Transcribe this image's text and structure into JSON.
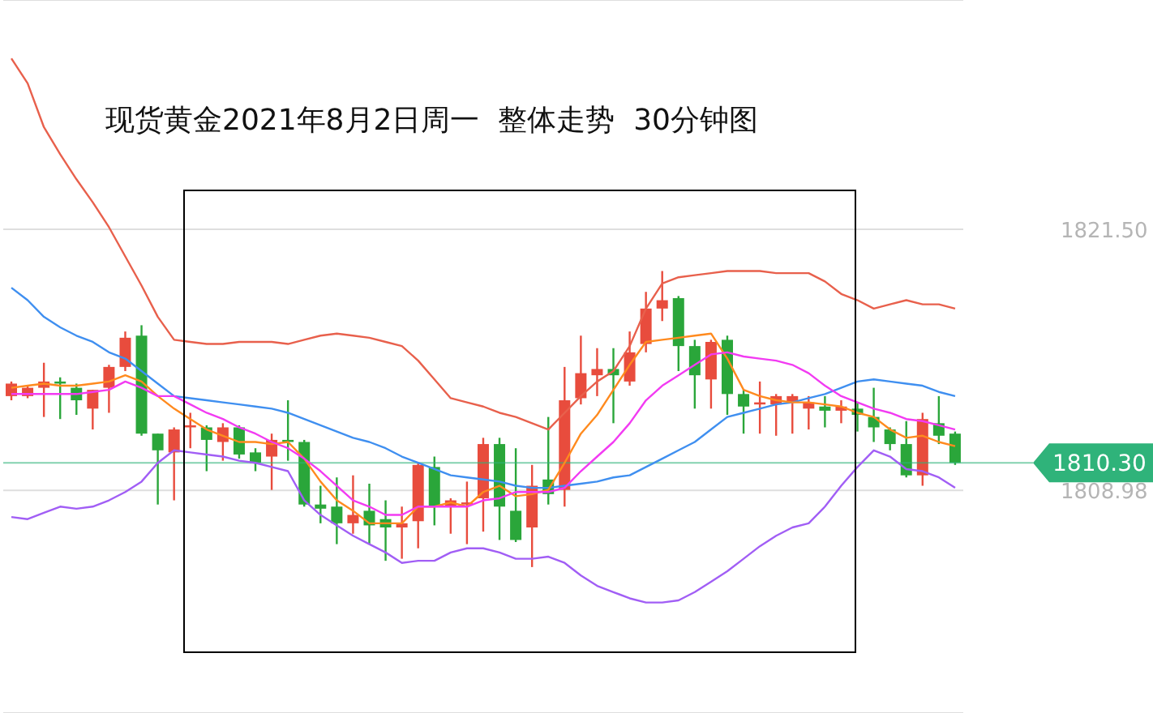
{
  "chart_data": {
    "type": "candlestick",
    "title": "现货黄金2021年8月2日周一  整体走势  30分钟图",
    "categories": [
      null,
      null,
      null,
      null,
      null,
      null,
      null,
      null,
      null,
      null,
      null,
      null,
      null,
      null,
      null,
      null,
      null,
      null,
      null,
      null,
      null,
      null,
      null,
      null,
      null,
      null,
      null,
      null,
      null,
      null,
      null,
      null,
      null,
      null,
      null,
      null,
      null,
      null,
      null,
      null,
      null,
      null,
      null,
      null,
      null,
      null,
      null,
      null,
      null,
      null,
      null,
      null,
      null,
      null,
      null,
      null,
      null,
      null,
      null
    ],
    "ohlc": [
      [
        1813.5,
        1814.2,
        1813.3,
        1814.1
      ],
      [
        1813.5,
        1814.0,
        1813.4,
        1813.9
      ],
      [
        1813.9,
        1815.1,
        1812.5,
        1814.2
      ],
      [
        1814.2,
        1814.4,
        1812.4,
        1814.1
      ],
      [
        1813.9,
        1814.1,
        1812.6,
        1813.3
      ],
      [
        1812.9,
        1813.8,
        1811.9,
        1813.8
      ],
      [
        1813.9,
        1815.0,
        1812.7,
        1814.9
      ],
      [
        1814.9,
        1816.6,
        1814.7,
        1816.3
      ],
      [
        1816.4,
        1816.9,
        1811.6,
        1811.7
      ],
      [
        1811.7,
        1811.7,
        1808.3,
        1810.9
      ],
      [
        1810.8,
        1812.0,
        1808.5,
        1811.9
      ],
      [
        1812.0,
        1812.7,
        1811.0,
        1812.1
      ],
      [
        1812.0,
        1812.1,
        1809.9,
        1811.4
      ],
      [
        1811.3,
        1812.2,
        1810.4,
        1812.0
      ],
      [
        1812.0,
        1812.1,
        1810.5,
        1810.7
      ],
      [
        1810.8,
        1811.0,
        1809.9,
        1810.3
      ],
      [
        1810.6,
        1811.7,
        1809.0,
        1811.4
      ],
      [
        1811.4,
        1813.3,
        1810.4,
        1811.3
      ],
      [
        1811.3,
        1811.4,
        1808.2,
        1808.3
      ],
      [
        1808.3,
        1809.2,
        1807.4,
        1808.1
      ],
      [
        1808.2,
        1809.6,
        1806.4,
        1807.4
      ],
      [
        1807.4,
        1809.7,
        1806.9,
        1807.8
      ],
      [
        1808.0,
        1809.3,
        1806.4,
        1807.3
      ],
      [
        1807.6,
        1808.5,
        1805.6,
        1807.2
      ],
      [
        1807.2,
        1808.2,
        1805.7,
        1807.4
      ],
      [
        1807.5,
        1810.3,
        1806.2,
        1810.2
      ],
      [
        1810.1,
        1810.6,
        1807.3,
        1808.2
      ],
      [
        1808.2,
        1808.6,
        1806.9,
        1808.5
      ],
      [
        1808.3,
        1809.4,
        1806.4,
        1808.4
      ],
      [
        1808.6,
        1811.5,
        1807.0,
        1811.2
      ],
      [
        1811.2,
        1811.5,
        1806.6,
        1808.2
      ],
      [
        1808.0,
        1811.0,
        1806.5,
        1806.6
      ],
      [
        1807.2,
        1810.2,
        1805.3,
        1809.2
      ],
      [
        1809.5,
        1812.5,
        1808.3,
        1808.8
      ],
      [
        1809.0,
        1814.9,
        1808.2,
        1813.3
      ],
      [
        1813.4,
        1816.4,
        1813.1,
        1814.6
      ],
      [
        1814.5,
        1815.8,
        1813.5,
        1814.8
      ],
      [
        1814.8,
        1815.8,
        1812.2,
        1814.5
      ],
      [
        1814.2,
        1816.6,
        1814.0,
        1815.6
      ],
      [
        1816.0,
        1818.5,
        1815.6,
        1817.7
      ],
      [
        1817.7,
        1819.5,
        1817.1,
        1818.1
      ],
      [
        1818.2,
        1818.3,
        1814.7,
        1815.9
      ],
      [
        1815.9,
        1816.2,
        1812.9,
        1814.5
      ],
      [
        1814.3,
        1816.2,
        1812.9,
        1816.1
      ],
      [
        1816.2,
        1816.4,
        1812.6,
        1813.6
      ],
      [
        1813.6,
        1813.8,
        1811.7,
        1813.0
      ],
      [
        1813.1,
        1814.2,
        1811.7,
        1813.2
      ],
      [
        1813.1,
        1813.6,
        1811.6,
        1813.5
      ],
      [
        1813.2,
        1813.6,
        1811.7,
        1813.5
      ],
      [
        1812.9,
        1813.5,
        1811.9,
        1813.2
      ],
      [
        1813.0,
        1813.5,
        1812.0,
        1812.8
      ],
      [
        1812.8,
        1813.3,
        1812.2,
        1813.0
      ],
      [
        1812.9,
        1813.2,
        1811.8,
        1812.6
      ],
      [
        1812.5,
        1813.9,
        1811.3,
        1812.0
      ],
      [
        1811.9,
        1812.0,
        1810.9,
        1811.2
      ],
      [
        1811.2,
        1812.3,
        1809.6,
        1809.7
      ],
      [
        1809.7,
        1812.7,
        1809.2,
        1812.4
      ],
      [
        1812.2,
        1813.5,
        1811.2,
        1811.6
      ],
      [
        1811.7,
        1811.8,
        1810.2,
        1810.3
      ]
    ],
    "colors": [
      "#e84c3d",
      "#e84c3d",
      "#e84c3d",
      "#2aa63a",
      "#2aa63a",
      "#e84c3d",
      "#e84c3d",
      "#e84c3d",
      "#2aa63a",
      "#2aa63a",
      "#e84c3d",
      "#e84c3d",
      "#2aa63a",
      "#e84c3d",
      "#2aa63a",
      "#2aa63a",
      "#e84c3d",
      "#2aa63a",
      "#2aa63a",
      "#2aa63a",
      "#2aa63a",
      "#e84c3d",
      "#2aa63a",
      "#2aa63a",
      "#e84c3d",
      "#e84c3d",
      "#2aa63a",
      "#e84c3d",
      "#e84c3d",
      "#e84c3d",
      "#2aa63a",
      "#2aa63a",
      "#e84c3d",
      "#2aa63a",
      "#e84c3d",
      "#e84c3d",
      "#e84c3d",
      "#2aa63a",
      "#e84c3d",
      "#e84c3d",
      "#e84c3d",
      "#2aa63a",
      "#2aa63a",
      "#e84c3d",
      "#2aa63a",
      "#2aa63a",
      "#e84c3d",
      "#e84c3d",
      "#e84c3d",
      "#e84c3d",
      "#2aa63a",
      "#e84c3d",
      "#2aa63a",
      "#2aa63a",
      "#2aa63a",
      "#2aa63a",
      "#e84c3d",
      "#2aa63a",
      "#2aa63a"
    ],
    "series": [
      {
        "type": "line",
        "color": "#e8604c",
        "values": [
          1829.7,
          1828.5,
          1826.4,
          1825.1,
          1823.9,
          1822.8,
          1821.6,
          1820.2,
          1818.8,
          1817.3,
          1816.2,
          1816.1,
          1816.0,
          1816.0,
          1816.1,
          1816.1,
          1816.1,
          1816.0,
          1816.2,
          1816.4,
          1816.5,
          1816.4,
          1816.3,
          1816.1,
          1815.9,
          1815.2,
          1814.3,
          1813.4,
          1813.2,
          1813.0,
          1812.7,
          1812.5,
          1812.2,
          1811.9,
          1812.7,
          1813.5,
          1814.2,
          1814.7,
          1815.9,
          1817.7,
          1818.9,
          1819.2,
          1819.3,
          1819.4,
          1819.5,
          1819.5,
          1819.5,
          1819.4,
          1819.4,
          1819.4,
          1819.0,
          1818.4,
          1818.1,
          1817.7,
          1817.9,
          1818.1,
          1817.9,
          1817.9,
          1817.7
        ]
      },
      {
        "type": "line",
        "color": "#3f8ff0",
        "values": [
          1818.7,
          1818.1,
          1817.3,
          1816.8,
          1816.4,
          1816.1,
          1815.6,
          1815.3,
          1814.7,
          1814.1,
          1813.5,
          1813.4,
          1813.3,
          1813.2,
          1813.1,
          1813.0,
          1812.9,
          1812.7,
          1812.4,
          1812.1,
          1811.8,
          1811.5,
          1811.3,
          1811.0,
          1810.6,
          1810.3,
          1810.0,
          1809.7,
          1809.6,
          1809.5,
          1809.4,
          1809.2,
          1809.1,
          1809.1,
          1809.2,
          1809.3,
          1809.4,
          1809.6,
          1809.7,
          1810.1,
          1810.5,
          1810.9,
          1811.3,
          1811.9,
          1812.5,
          1812.7,
          1812.9,
          1813.1,
          1813.2,
          1813.4,
          1813.6,
          1813.9,
          1814.2,
          1814.3,
          1814.2,
          1814.1,
          1814.0,
          1813.7,
          1813.5
        ]
      },
      {
        "type": "line",
        "color": "#a15ef5",
        "values": [
          1807.7,
          1807.6,
          1807.9,
          1808.2,
          1808.1,
          1808.2,
          1808.5,
          1808.9,
          1809.4,
          1810.3,
          1810.9,
          1810.8,
          1810.7,
          1810.6,
          1810.4,
          1810.3,
          1810.1,
          1809.9,
          1808.5,
          1807.8,
          1807.3,
          1806.8,
          1806.4,
          1806.0,
          1805.5,
          1805.6,
          1805.6,
          1806.0,
          1806.2,
          1806.2,
          1806.0,
          1805.7,
          1805.7,
          1805.8,
          1805.5,
          1804.9,
          1804.4,
          1804.1,
          1803.8,
          1803.6,
          1803.6,
          1803.7,
          1804.1,
          1804.6,
          1805.1,
          1805.7,
          1806.3,
          1806.8,
          1807.2,
          1807.4,
          1808.2,
          1809.2,
          1810.1,
          1810.9,
          1810.6,
          1810.0,
          1809.9,
          1809.6,
          1809.1
        ]
      },
      {
        "type": "line",
        "color": "#ff8a1e",
        "values": [
          1813.9,
          1814.0,
          1814.1,
          1814.0,
          1814.0,
          1814.1,
          1814.2,
          1814.5,
          1814.2,
          1813.5,
          1812.9,
          1812.4,
          1811.9,
          1811.6,
          1811.3,
          1811.3,
          1811.2,
          1811.3,
          1810.5,
          1809.4,
          1808.5,
          1808.0,
          1807.4,
          1807.4,
          1807.4,
          1808.2,
          1808.2,
          1808.4,
          1808.2,
          1808.9,
          1809.2,
          1808.7,
          1808.8,
          1809.0,
          1810.3,
          1811.7,
          1812.6,
          1813.8,
          1815.0,
          1816.1,
          1816.2,
          1816.3,
          1816.4,
          1816.5,
          1815.3,
          1813.8,
          1813.5,
          1813.3,
          1813.2,
          1813.2,
          1813.1,
          1813.0,
          1812.7,
          1812.5,
          1811.9,
          1811.5,
          1811.6,
          1811.3,
          1811.1
        ]
      },
      {
        "type": "line",
        "color": "#f23bf2",
        "values": [
          1813.6,
          1813.6,
          1813.6,
          1813.6,
          1813.6,
          1813.7,
          1813.8,
          1814.2,
          1813.9,
          1813.5,
          1813.5,
          1813.1,
          1812.7,
          1812.4,
          1812.0,
          1811.7,
          1811.3,
          1811.0,
          1810.5,
          1809.9,
          1809.2,
          1808.5,
          1808.2,
          1807.8,
          1807.8,
          1808.2,
          1808.2,
          1808.2,
          1808.2,
          1808.5,
          1808.6,
          1808.9,
          1808.9,
          1808.9,
          1809.1,
          1809.9,
          1810.6,
          1811.3,
          1812.2,
          1813.3,
          1814.0,
          1814.5,
          1815.0,
          1815.5,
          1815.6,
          1815.4,
          1815.3,
          1815.2,
          1815.0,
          1814.6,
          1814.0,
          1813.5,
          1813.2,
          1812.9,
          1812.7,
          1812.4,
          1812.3,
          1812.1,
          1811.9
        ]
      }
    ],
    "ylim": [
      1798.3,
      1832.5
    ],
    "yticks": [
      {
        "value": 1821.5,
        "label": "1821.50"
      },
      {
        "value": 1808.98,
        "label": "1808.98"
      }
    ],
    "ref_lines": [
      {
        "axis": "y",
        "value": 1810.3,
        "label": "1810.30",
        "color": "#2fb37a"
      }
    ],
    "grid": "y",
    "tick_labels": "y",
    "marker": "none",
    "line_style": "solid"
  }
}
